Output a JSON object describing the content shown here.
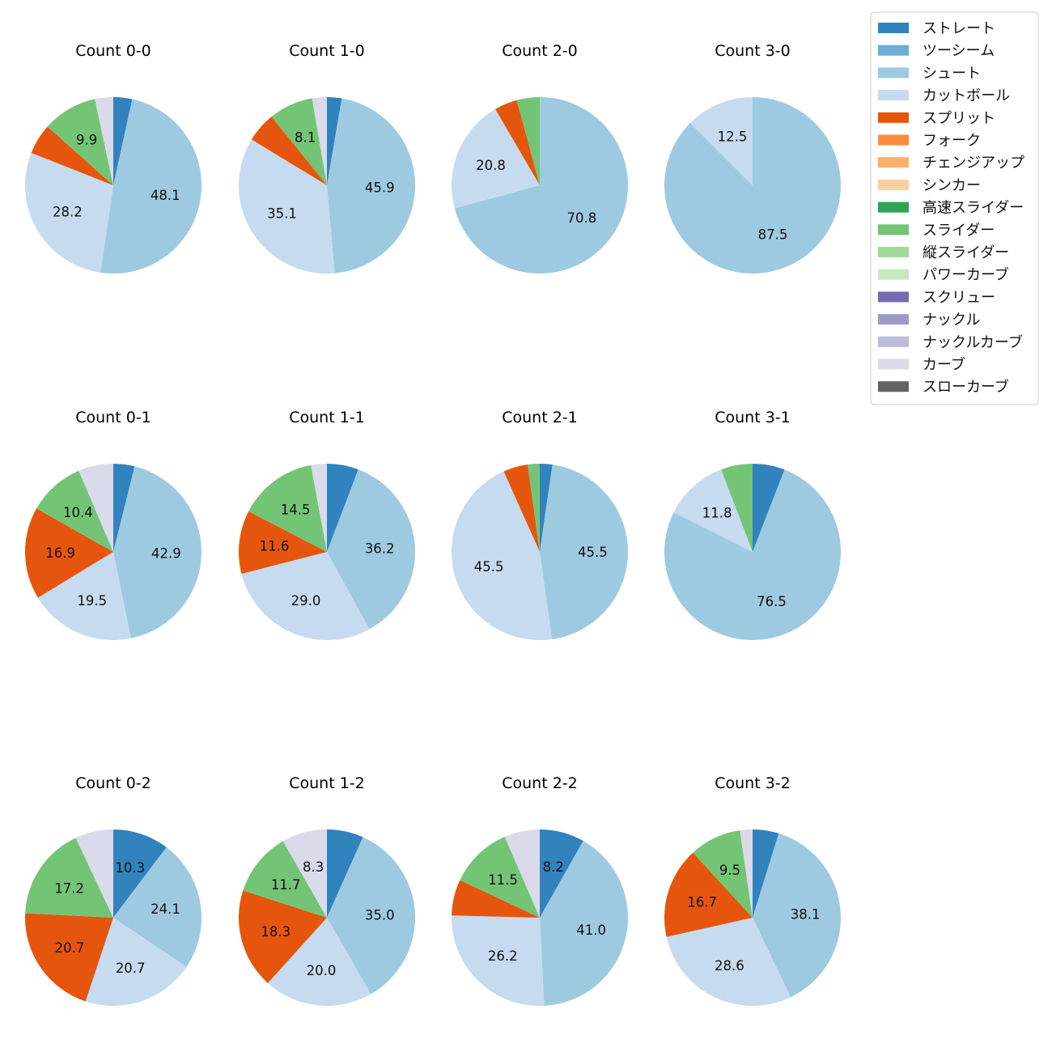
{
  "chart_data": {
    "type": "pie",
    "legend": {
      "position": "top-right",
      "entries": [
        {
          "name": "ストレート",
          "color": "#3182bd"
        },
        {
          "name": "ツーシーム",
          "color": "#6baed6"
        },
        {
          "name": "シュート",
          "color": "#9ecae1"
        },
        {
          "name": "カットボール",
          "color": "#c6dbef"
        },
        {
          "name": "スプリット",
          "color": "#e6550d"
        },
        {
          "name": "フォーク",
          "color": "#fd8d3c"
        },
        {
          "name": "チェンジアップ",
          "color": "#fdae6b"
        },
        {
          "name": "シンカー",
          "color": "#fdd0a2"
        },
        {
          "name": "高速スライダー",
          "color": "#31a354"
        },
        {
          "name": "スライダー",
          "color": "#74c476"
        },
        {
          "name": "縦スライダー",
          "color": "#a1d99b"
        },
        {
          "name": "パワーカーブ",
          "color": "#c7e9c0"
        },
        {
          "name": "スクリュー",
          "color": "#756bb1"
        },
        {
          "name": "ナックル",
          "color": "#9e9ac8"
        },
        {
          "name": "ナックルカーブ",
          "color": "#bcbddc"
        },
        {
          "name": "カーブ",
          "color": "#dadaeb"
        },
        {
          "name": "スローカーブ",
          "color": "#636363"
        }
      ]
    },
    "pies": [
      {
        "title": "Count 0-0",
        "row": 0,
        "col": 0,
        "slices": [
          {
            "name": "ストレート",
            "value": 3.4,
            "label": ""
          },
          {
            "name": "シュート",
            "value": 48.1,
            "label": "48.1"
          },
          {
            "name": "カットボール",
            "value": 28.2,
            "label": "28.2"
          },
          {
            "name": "スプリット",
            "value": 5.5,
            "label": ""
          },
          {
            "name": "スライダー",
            "value": 9.9,
            "label": "9.9"
          },
          {
            "name": "カーブ",
            "value": 3.3,
            "label": ""
          }
        ]
      },
      {
        "title": "Count 1-0",
        "row": 0,
        "col": 1,
        "slices": [
          {
            "name": "ストレート",
            "value": 2.7,
            "label": ""
          },
          {
            "name": "シュート",
            "value": 45.9,
            "label": "45.9"
          },
          {
            "name": "カットボール",
            "value": 35.1,
            "label": "35.1"
          },
          {
            "name": "スプリット",
            "value": 5.5,
            "label": ""
          },
          {
            "name": "スライダー",
            "value": 8.1,
            "label": "8.1"
          },
          {
            "name": "カーブ",
            "value": 2.7,
            "label": ""
          }
        ]
      },
      {
        "title": "Count 2-0",
        "row": 0,
        "col": 2,
        "slices": [
          {
            "name": "シュート",
            "value": 70.8,
            "label": "70.8"
          },
          {
            "name": "カットボール",
            "value": 20.8,
            "label": "20.8"
          },
          {
            "name": "スプリット",
            "value": 4.2,
            "label": ""
          },
          {
            "name": "スライダー",
            "value": 4.2,
            "label": ""
          }
        ]
      },
      {
        "title": "Count 3-0",
        "row": 0,
        "col": 3,
        "slices": [
          {
            "name": "シュート",
            "value": 87.5,
            "label": "87.5"
          },
          {
            "name": "カットボール",
            "value": 12.5,
            "label": "12.5"
          }
        ]
      },
      {
        "title": "Count 0-1",
        "row": 1,
        "col": 0,
        "slices": [
          {
            "name": "ストレート",
            "value": 3.9,
            "label": ""
          },
          {
            "name": "シュート",
            "value": 42.9,
            "label": "42.9"
          },
          {
            "name": "カットボール",
            "value": 19.5,
            "label": "19.5"
          },
          {
            "name": "スプリット",
            "value": 16.9,
            "label": "16.9"
          },
          {
            "name": "スライダー",
            "value": 10.4,
            "label": "10.4"
          },
          {
            "name": "カーブ",
            "value": 6.4,
            "label": ""
          }
        ]
      },
      {
        "title": "Count 1-1",
        "row": 1,
        "col": 1,
        "slices": [
          {
            "name": "ストレート",
            "value": 5.8,
            "label": ""
          },
          {
            "name": "シュート",
            "value": 36.2,
            "label": "36.2"
          },
          {
            "name": "カットボール",
            "value": 29.0,
            "label": "29.0"
          },
          {
            "name": "スプリット",
            "value": 11.6,
            "label": "11.6"
          },
          {
            "name": "スライダー",
            "value": 14.5,
            "label": "14.5"
          },
          {
            "name": "カーブ",
            "value": 2.9,
            "label": ""
          }
        ]
      },
      {
        "title": "Count 2-1",
        "row": 1,
        "col": 2,
        "slices": [
          {
            "name": "ストレート",
            "value": 2.3,
            "label": ""
          },
          {
            "name": "シュート",
            "value": 45.5,
            "label": "45.5"
          },
          {
            "name": "カットボール",
            "value": 45.5,
            "label": "45.5"
          },
          {
            "name": "スプリット",
            "value": 4.5,
            "label": ""
          },
          {
            "name": "スライダー",
            "value": 2.2,
            "label": ""
          }
        ]
      },
      {
        "title": "Count 3-1",
        "row": 1,
        "col": 3,
        "slices": [
          {
            "name": "ストレート",
            "value": 5.9,
            "label": ""
          },
          {
            "name": "シュート",
            "value": 76.5,
            "label": "76.5"
          },
          {
            "name": "カットボール",
            "value": 11.8,
            "label": "11.8"
          },
          {
            "name": "スライダー",
            "value": 5.8,
            "label": ""
          }
        ]
      },
      {
        "title": "Count 0-2",
        "row": 2,
        "col": 0,
        "slices": [
          {
            "name": "ストレート",
            "value": 10.3,
            "label": "10.3"
          },
          {
            "name": "シュート",
            "value": 24.1,
            "label": "24.1"
          },
          {
            "name": "カットボール",
            "value": 20.7,
            "label": "20.7"
          },
          {
            "name": "スプリット",
            "value": 20.7,
            "label": "20.7"
          },
          {
            "name": "スライダー",
            "value": 17.2,
            "label": "17.2"
          },
          {
            "name": "カーブ",
            "value": 7.0,
            "label": ""
          }
        ]
      },
      {
        "title": "Count 1-2",
        "row": 2,
        "col": 1,
        "slices": [
          {
            "name": "ストレート",
            "value": 6.7,
            "label": ""
          },
          {
            "name": "シュート",
            "value": 35.0,
            "label": "35.0"
          },
          {
            "name": "カットボール",
            "value": 20.0,
            "label": "20.0"
          },
          {
            "name": "スプリット",
            "value": 18.3,
            "label": "18.3"
          },
          {
            "name": "スライダー",
            "value": 11.7,
            "label": "11.7"
          },
          {
            "name": "カーブ",
            "value": 8.3,
            "label": "8.3"
          }
        ]
      },
      {
        "title": "Count 2-2",
        "row": 2,
        "col": 2,
        "slices": [
          {
            "name": "ストレート",
            "value": 8.2,
            "label": "8.2"
          },
          {
            "name": "シュート",
            "value": 41.0,
            "label": "41.0"
          },
          {
            "name": "カットボール",
            "value": 26.2,
            "label": "26.2"
          },
          {
            "name": "スプリット",
            "value": 6.6,
            "label": ""
          },
          {
            "name": "スライダー",
            "value": 11.5,
            "label": "11.5"
          },
          {
            "name": "カーブ",
            "value": 6.5,
            "label": ""
          }
        ]
      },
      {
        "title": "Count 3-2",
        "row": 2,
        "col": 3,
        "slices": [
          {
            "name": "ストレート",
            "value": 4.8,
            "label": ""
          },
          {
            "name": "シュート",
            "value": 38.1,
            "label": "38.1"
          },
          {
            "name": "カットボール",
            "value": 28.6,
            "label": "28.6"
          },
          {
            "name": "スプリット",
            "value": 16.7,
            "label": "16.7"
          },
          {
            "name": "スライダー",
            "value": 9.5,
            "label": "9.5"
          },
          {
            "name": "カーブ",
            "value": 2.3,
            "label": ""
          }
        ]
      }
    ]
  }
}
